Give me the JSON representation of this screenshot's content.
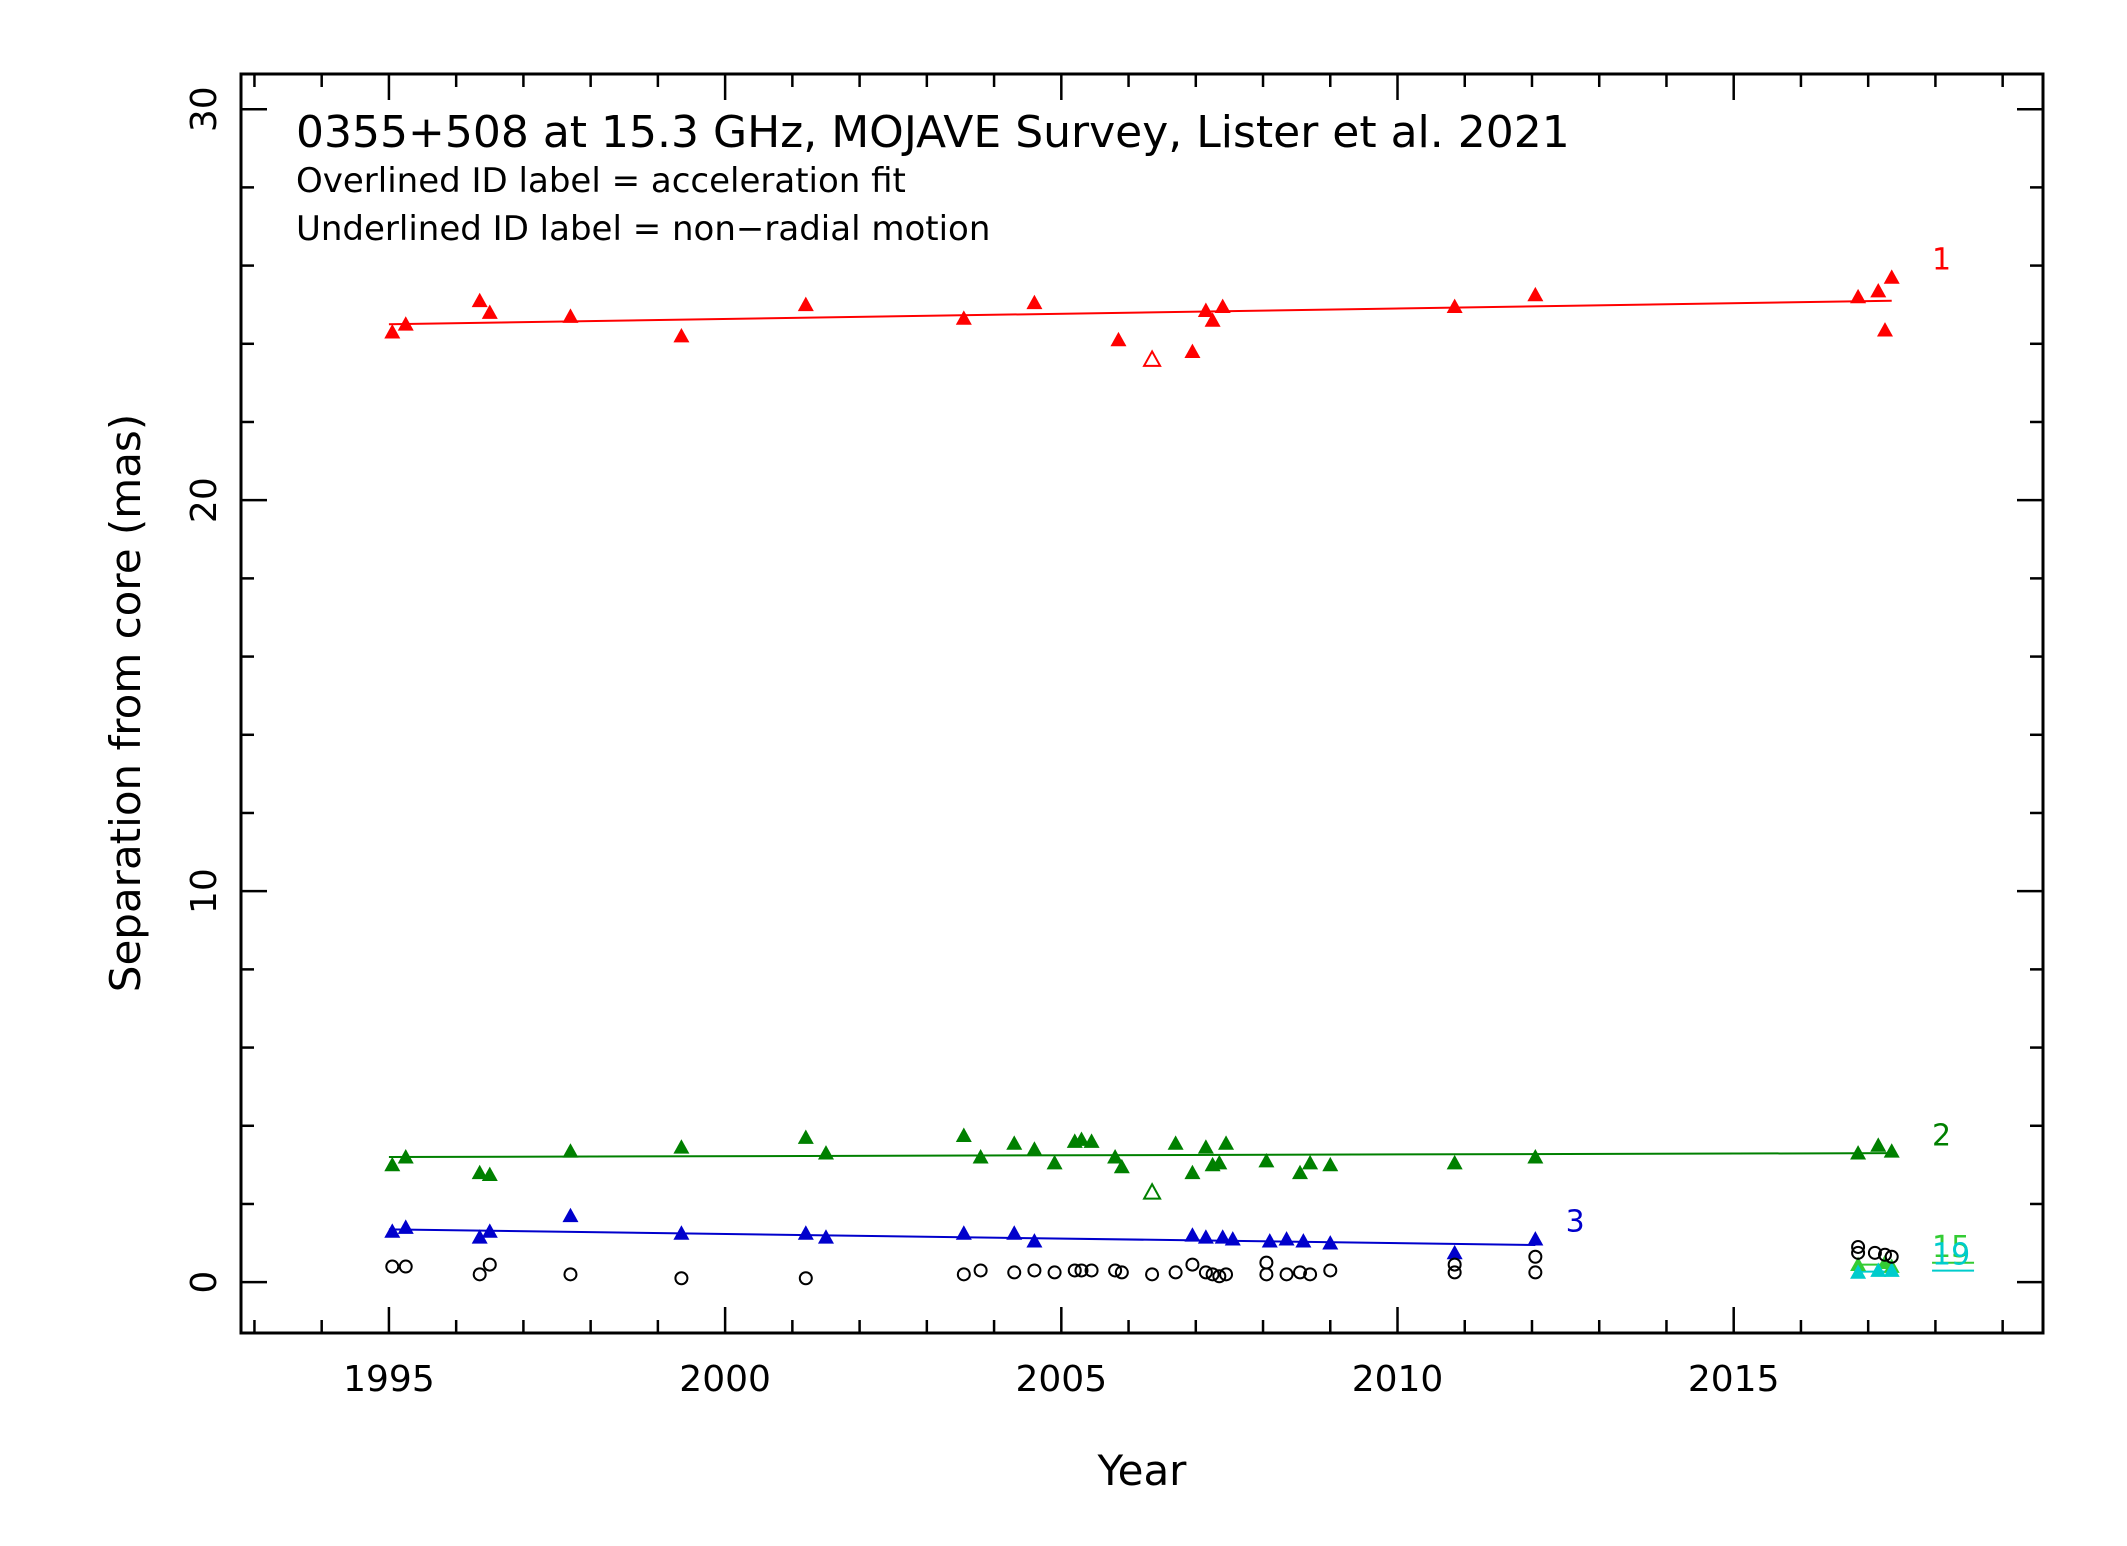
{
  "chart_data": {
    "type": "scatter",
    "title": "0355+508 at 15.3 GHz, MOJAVE Survey, Lister et al. 2021",
    "subtitle_lines": [
      "Overlined ID label = acceleration fit",
      "Underlined ID label = non−radial motion"
    ],
    "xlabel": "Year",
    "ylabel": "Separation from core (mas)",
    "xlim": [
      1992.8,
      2019.6
    ],
    "ylim": [
      -1.3,
      30.9
    ],
    "xticks": [
      1995,
      2000,
      2005,
      2010,
      2015
    ],
    "yticks": [
      0,
      10,
      20,
      30
    ],
    "grid": false,
    "series": [
      {
        "name": "1",
        "color": "#ff0000",
        "marker": "triangle",
        "points": [
          [
            1995.05,
            24.3
          ],
          [
            1995.25,
            24.5
          ],
          [
            1996.35,
            25.1
          ],
          [
            1996.5,
            24.8
          ],
          [
            1997.7,
            24.7
          ],
          [
            1999.35,
            24.2
          ],
          [
            2001.2,
            25.0
          ],
          [
            2003.55,
            24.65
          ],
          [
            2004.6,
            25.05
          ],
          [
            2005.85,
            24.1
          ],
          [
            2006.95,
            23.8
          ],
          [
            2007.15,
            24.85
          ],
          [
            2007.25,
            24.6
          ],
          [
            2007.4,
            24.95
          ],
          [
            2010.85,
            24.95
          ],
          [
            2012.05,
            25.25
          ],
          [
            2016.85,
            25.2
          ],
          [
            2017.15,
            25.35
          ],
          [
            2017.25,
            24.35
          ],
          [
            2017.35,
            25.7
          ]
        ],
        "open_points": [
          [
            2006.35,
            23.6
          ]
        ],
        "fit": [
          [
            1995.0,
            24.5
          ],
          [
            2017.35,
            25.1
          ]
        ],
        "label_pos": [
          2017.95,
          25.9
        ]
      },
      {
        "name": "2",
        "color": "#008000",
        "marker": "triangle",
        "points": [
          [
            1995.05,
            3.0
          ],
          [
            1995.25,
            3.2
          ],
          [
            1996.35,
            2.8
          ],
          [
            1996.5,
            2.75
          ],
          [
            1997.7,
            3.35
          ],
          [
            1999.35,
            3.45
          ],
          [
            2001.2,
            3.7
          ],
          [
            2001.5,
            3.3
          ],
          [
            2003.55,
            3.75
          ],
          [
            2003.8,
            3.2
          ],
          [
            2004.3,
            3.55
          ],
          [
            2004.6,
            3.4
          ],
          [
            2004.9,
            3.05
          ],
          [
            2005.2,
            3.6
          ],
          [
            2005.3,
            3.65
          ],
          [
            2005.45,
            3.6
          ],
          [
            2005.8,
            3.2
          ],
          [
            2005.9,
            2.95
          ],
          [
            2006.7,
            3.55
          ],
          [
            2006.95,
            2.8
          ],
          [
            2007.15,
            3.45
          ],
          [
            2007.25,
            3.0
          ],
          [
            2007.35,
            3.05
          ],
          [
            2007.45,
            3.55
          ],
          [
            2008.05,
            3.1
          ],
          [
            2008.55,
            2.8
          ],
          [
            2008.7,
            3.05
          ],
          [
            2009.0,
            3.0
          ],
          [
            2010.85,
            3.05
          ],
          [
            2012.05,
            3.2
          ],
          [
            2016.85,
            3.3
          ],
          [
            2017.15,
            3.5
          ],
          [
            2017.35,
            3.35
          ]
        ],
        "open_points": [
          [
            2006.35,
            2.3
          ]
        ],
        "fit": [
          [
            1995.0,
            3.2
          ],
          [
            2017.35,
            3.3
          ]
        ],
        "label_pos": [
          2017.95,
          3.5
        ]
      },
      {
        "name": "3",
        "color": "#0000cc",
        "marker": "triangle",
        "points": [
          [
            1995.05,
            1.3
          ],
          [
            1995.25,
            1.4
          ],
          [
            1996.35,
            1.15
          ],
          [
            1996.5,
            1.3
          ],
          [
            1997.7,
            1.7
          ],
          [
            1999.35,
            1.25
          ],
          [
            2001.2,
            1.25
          ],
          [
            2001.5,
            1.15
          ],
          [
            2003.55,
            1.25
          ],
          [
            2004.3,
            1.25
          ],
          [
            2004.6,
            1.05
          ],
          [
            2006.95,
            1.2
          ],
          [
            2007.15,
            1.15
          ],
          [
            2007.4,
            1.15
          ],
          [
            2007.55,
            1.1
          ],
          [
            2008.1,
            1.05
          ],
          [
            2008.35,
            1.1
          ],
          [
            2008.6,
            1.05
          ],
          [
            2009.0,
            1.0
          ],
          [
            2010.85,
            0.75
          ],
          [
            2012.05,
            1.1
          ]
        ],
        "open_points": [],
        "fit": [
          [
            1995.0,
            1.35
          ],
          [
            2012.05,
            0.95
          ]
        ],
        "label_pos": [
          2012.5,
          1.3
        ]
      },
      {
        "name": "15",
        "color": "#33cc33",
        "marker": "triangle",
        "points": [
          [
            2016.85,
            0.45
          ],
          [
            2017.25,
            0.5
          ],
          [
            2017.35,
            0.4
          ]
        ],
        "open_points": [],
        "fit": [
          [
            2016.85,
            0.45
          ],
          [
            2017.35,
            0.45
          ]
        ],
        "label_pos": [
          2017.95,
          0.65
        ]
      },
      {
        "name": "19",
        "color": "#00cccc",
        "marker": "triangle",
        "points": [
          [
            2016.85,
            0.25
          ],
          [
            2017.15,
            0.3
          ],
          [
            2017.35,
            0.3
          ]
        ],
        "open_points": [],
        "fit": [
          [
            2016.85,
            0.27
          ],
          [
            2017.35,
            0.27
          ]
        ],
        "label_pos": [
          2017.95,
          0.45
        ]
      },
      {
        "name": "",
        "color": "#000000",
        "marker": "circle-open",
        "points": [
          [
            1995.05,
            0.4
          ],
          [
            1995.25,
            0.4
          ],
          [
            1996.35,
            0.2
          ],
          [
            1996.5,
            0.45
          ],
          [
            1997.7,
            0.2
          ],
          [
            1999.35,
            0.1
          ],
          [
            2001.2,
            0.1
          ],
          [
            2003.55,
            0.2
          ],
          [
            2003.8,
            0.3
          ],
          [
            2004.3,
            0.25
          ],
          [
            2004.6,
            0.3
          ],
          [
            2004.9,
            0.25
          ],
          [
            2005.2,
            0.3
          ],
          [
            2005.3,
            0.3
          ],
          [
            2005.45,
            0.3
          ],
          [
            2005.8,
            0.3
          ],
          [
            2005.9,
            0.25
          ],
          [
            2006.35,
            0.2
          ],
          [
            2006.7,
            0.25
          ],
          [
            2006.95,
            0.45
          ],
          [
            2007.15,
            0.25
          ],
          [
            2007.25,
            0.2
          ],
          [
            2007.35,
            0.15
          ],
          [
            2007.45,
            0.2
          ],
          [
            2008.05,
            0.5
          ],
          [
            2008.05,
            0.2
          ],
          [
            2008.35,
            0.2
          ],
          [
            2008.55,
            0.25
          ],
          [
            2008.7,
            0.2
          ],
          [
            2009.0,
            0.3
          ],
          [
            2010.85,
            0.45
          ],
          [
            2010.85,
            0.25
          ],
          [
            2012.05,
            0.65
          ],
          [
            2012.05,
            0.25
          ],
          [
            2016.85,
            0.9
          ],
          [
            2016.85,
            0.75
          ],
          [
            2017.1,
            0.75
          ],
          [
            2017.25,
            0.7
          ],
          [
            2017.35,
            0.65
          ]
        ],
        "open_points": [],
        "fit": null,
        "label_pos": null
      }
    ]
  }
}
